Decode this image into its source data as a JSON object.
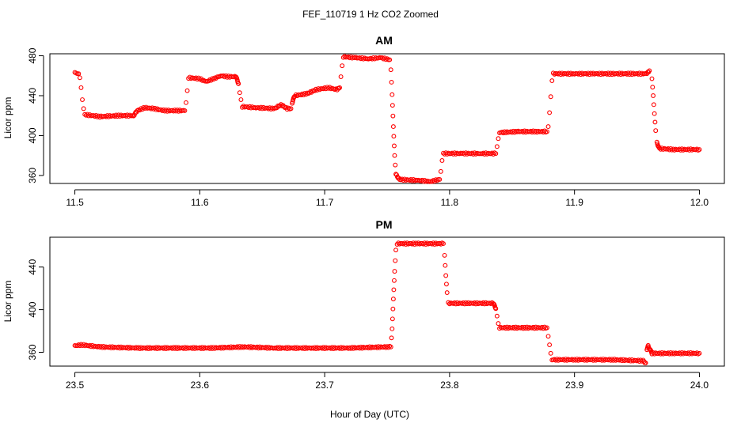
{
  "figure": {
    "title": "FEF_110719  1 Hz CO2 Zoomed",
    "xlabel": "Hour of Day (UTC)"
  },
  "chart_data": [
    {
      "type": "scatter",
      "title": "AM",
      "xlabel": "",
      "ylabel": "Licor ppm",
      "xlim": [
        11.5,
        12.0
      ],
      "ylim": [
        352,
        482
      ],
      "xticks": [
        11.5,
        11.6,
        11.7,
        11.8,
        11.9,
        12.0
      ],
      "xtick_labels": [
        "11.5",
        "11.6",
        "11.7",
        "11.8",
        "11.9",
        "12.0"
      ],
      "yticks": [
        360,
        400,
        440,
        480
      ],
      "ytick_labels": [
        "360",
        "400",
        "440",
        "480"
      ],
      "color": "#ff0000",
      "series": [
        {
          "name": "",
          "points": [
            [
              11.5,
              463
            ],
            [
              11.503,
              462
            ],
            [
              11.504,
              458
            ],
            [
              11.505,
              448
            ],
            [
              11.506,
              436
            ],
            [
              11.507,
              427
            ],
            [
              11.508,
              421
            ],
            [
              11.52,
              419
            ],
            [
              11.535,
              420
            ],
            [
              11.547,
              420
            ],
            [
              11.55,
              425
            ],
            [
              11.556,
              428
            ],
            [
              11.563,
              427
            ],
            [
              11.572,
              425
            ],
            [
              11.581,
              425
            ],
            [
              11.588,
              425
            ],
            [
              11.589,
              433
            ],
            [
              11.59,
              445
            ],
            [
              11.591,
              458
            ],
            [
              11.6,
              457
            ],
            [
              11.605,
              454
            ],
            [
              11.613,
              458
            ],
            [
              11.617,
              460
            ],
            [
              11.622,
              459
            ],
            [
              11.629,
              459
            ],
            [
              11.631,
              452
            ],
            [
              11.632,
              443
            ],
            [
              11.633,
              436
            ],
            [
              11.634,
              429
            ],
            [
              11.645,
              428
            ],
            [
              11.66,
              427
            ],
            [
              11.665,
              431
            ],
            [
              11.67,
              427
            ],
            [
              11.673,
              427
            ],
            [
              11.674,
              433
            ],
            [
              11.676,
              440
            ],
            [
              11.686,
              442
            ],
            [
              11.693,
              446
            ],
            [
              11.703,
              448
            ],
            [
              11.71,
              446
            ],
            [
              11.712,
              448
            ],
            [
              11.713,
              459
            ],
            [
              11.714,
              470
            ],
            [
              11.715,
              479
            ],
            [
              11.725,
              478
            ],
            [
              11.735,
              477
            ],
            [
              11.745,
              478
            ],
            [
              11.752,
              476
            ],
            [
              11.753,
              466
            ],
            [
              11.754,
              441
            ],
            [
              11.755,
              409
            ],
            [
              11.756,
              380
            ],
            [
              11.757,
              361
            ],
            [
              11.76,
              356
            ],
            [
              11.775,
              355
            ],
            [
              11.785,
              354
            ],
            [
              11.792,
              356
            ],
            [
              11.793,
              364
            ],
            [
              11.794,
              375
            ],
            [
              11.795,
              382
            ],
            [
              11.81,
              382
            ],
            [
              11.825,
              382
            ],
            [
              11.837,
              382
            ],
            [
              11.838,
              389
            ],
            [
              11.839,
              397
            ],
            [
              11.84,
              403
            ],
            [
              11.855,
              404
            ],
            [
              11.87,
              404
            ],
            [
              11.878,
              404
            ],
            [
              11.879,
              409
            ],
            [
              11.88,
              423
            ],
            [
              11.881,
              439
            ],
            [
              11.882,
              455
            ],
            [
              11.883,
              462
            ],
            [
              11.9,
              462
            ],
            [
              11.915,
              462
            ],
            [
              11.93,
              462
            ],
            [
              11.945,
              462
            ],
            [
              11.958,
              462
            ],
            [
              11.96,
              465
            ],
            [
              11.962,
              457
            ],
            [
              11.963,
              440
            ],
            [
              11.964,
              422
            ],
            [
              11.965,
              405
            ],
            [
              11.966,
              393
            ],
            [
              11.968,
              387
            ],
            [
              11.98,
              386
            ],
            [
              12.0,
              386
            ]
          ]
        }
      ]
    },
    {
      "type": "scatter",
      "title": "PM",
      "xlabel": "",
      "ylabel": "Licor ppm",
      "xlim": [
        23.5,
        24.0
      ],
      "ylim": [
        347,
        468
      ],
      "xticks": [
        23.5,
        23.6,
        23.7,
        23.8,
        23.9,
        24.0
      ],
      "xtick_labels": [
        "23.5",
        "23.6",
        "23.7",
        "23.8",
        "23.9",
        "24.0"
      ],
      "yticks": [
        360,
        400,
        440
      ],
      "ytick_labels": [
        "360",
        "400",
        "440"
      ],
      "color": "#ff0000",
      "series": [
        {
          "name": "",
          "points": [
            [
              23.5,
              366
            ],
            [
              23.505,
              367
            ],
            [
              23.52,
              365
            ],
            [
              23.55,
              364
            ],
            [
              23.58,
              364
            ],
            [
              23.61,
              364
            ],
            [
              23.635,
              365
            ],
            [
              23.66,
              364
            ],
            [
              23.69,
              364
            ],
            [
              23.72,
              364
            ],
            [
              23.75,
              365
            ],
            [
              23.753,
              365
            ],
            [
              23.754,
              382
            ],
            [
              23.755,
              410
            ],
            [
              23.756,
              436
            ],
            [
              23.757,
              456
            ],
            [
              23.758,
              462
            ],
            [
              23.775,
              462
            ],
            [
              23.795,
              462
            ],
            [
              23.796,
              451
            ],
            [
              23.797,
              432
            ],
            [
              23.798,
              416
            ],
            [
              23.799,
              406
            ],
            [
              23.815,
              406
            ],
            [
              23.835,
              406
            ],
            [
              23.837,
              401
            ],
            [
              23.838,
              394
            ],
            [
              23.839,
              387
            ],
            [
              23.84,
              383
            ],
            [
              23.86,
              383
            ],
            [
              23.878,
              383
            ],
            [
              23.879,
              375
            ],
            [
              23.88,
              367
            ],
            [
              23.881,
              359
            ],
            [
              23.882,
              353
            ],
            [
              23.9,
              353
            ],
            [
              23.93,
              353
            ],
            [
              23.955,
              352
            ],
            [
              23.957,
              350
            ],
            [
              23.958,
              363
            ],
            [
              23.959,
              366
            ],
            [
              23.962,
              359
            ],
            [
              23.98,
              359
            ],
            [
              24.0,
              359
            ]
          ]
        }
      ]
    }
  ]
}
